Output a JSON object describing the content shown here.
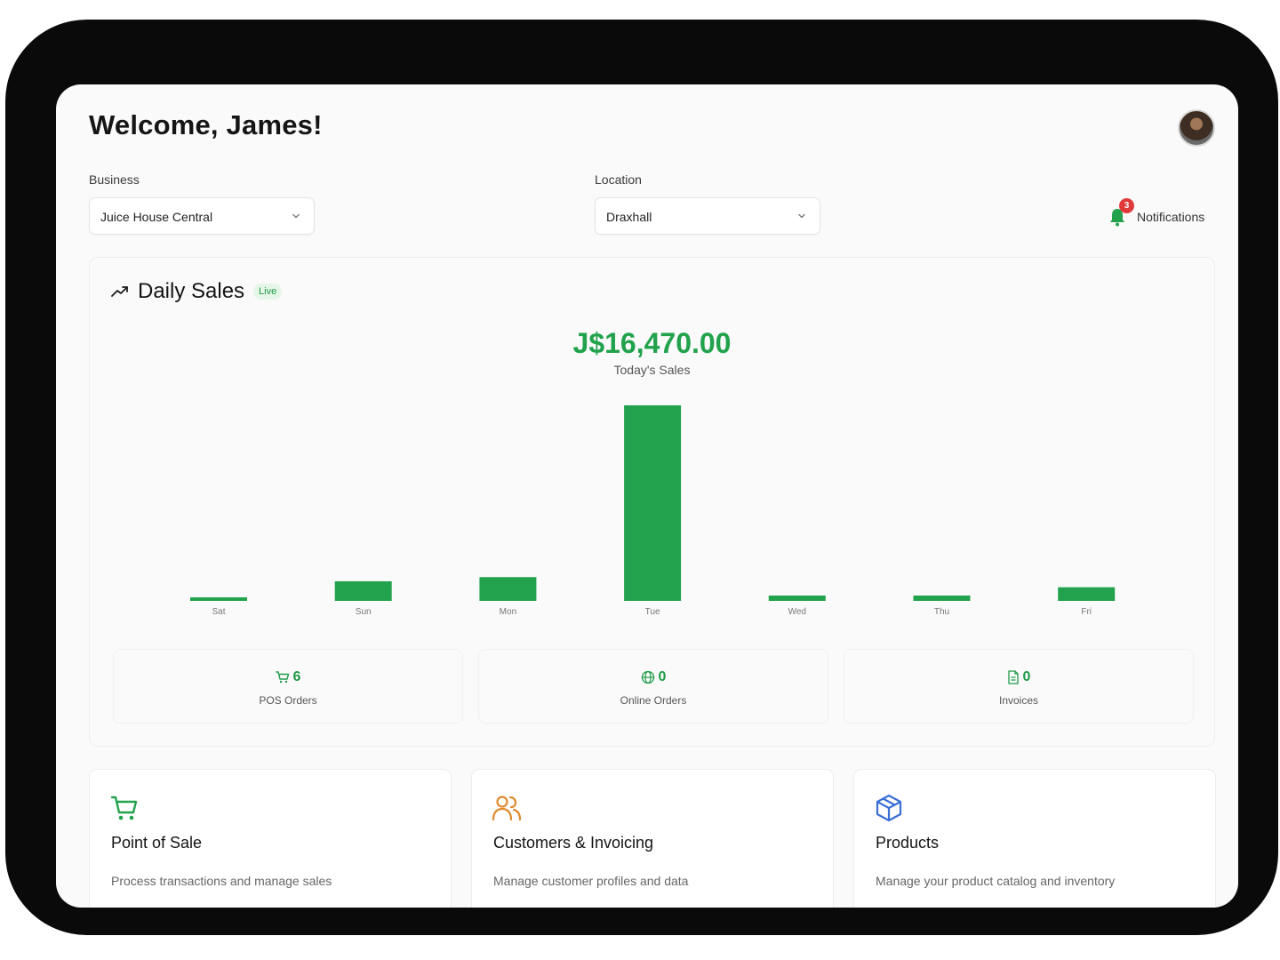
{
  "header": {
    "welcome": "Welcome, James!"
  },
  "filters": {
    "business_label": "Business",
    "business_value": "Juice House Central",
    "location_label": "Location",
    "location_value": "Draxhall"
  },
  "notifications": {
    "label": "Notifications",
    "count": "3"
  },
  "daily_sales": {
    "title": "Daily Sales",
    "badge": "Live",
    "total": "J$16,470.00",
    "total_label": "Today's Sales"
  },
  "chart_data": {
    "type": "bar",
    "categories": [
      "Sat",
      "Sun",
      "Mon",
      "Tue",
      "Wed",
      "Thu",
      "Fri"
    ],
    "values": [
      300,
      1650,
      2000,
      16470,
      450,
      450,
      1150
    ],
    "title": "",
    "xlabel": "",
    "ylabel": "",
    "ylim": [
      0,
      16470
    ],
    "color": "#22a24c",
    "grid": false
  },
  "stats": [
    {
      "icon": "cart-icon",
      "value": "6",
      "label": "POS Orders"
    },
    {
      "icon": "globe-icon",
      "value": "0",
      "label": "Online Orders"
    },
    {
      "icon": "document-icon",
      "value": "0",
      "label": "Invoices"
    }
  ],
  "modules": [
    {
      "icon": "shopping-cart-icon",
      "title": "Point of Sale",
      "desc": "Process transactions and manage sales",
      "color": "#22a24c"
    },
    {
      "icon": "users-icon",
      "title": "Customers & Invoicing",
      "desc": "Manage customer profiles and data",
      "color": "#e08a2c"
    },
    {
      "icon": "package-icon",
      "title": "Products",
      "desc": "Manage your product catalog and inventory",
      "color": "#3b6fd6"
    }
  ],
  "colors": {
    "accent": "#22a24c",
    "badge_red": "#e03a3a"
  }
}
